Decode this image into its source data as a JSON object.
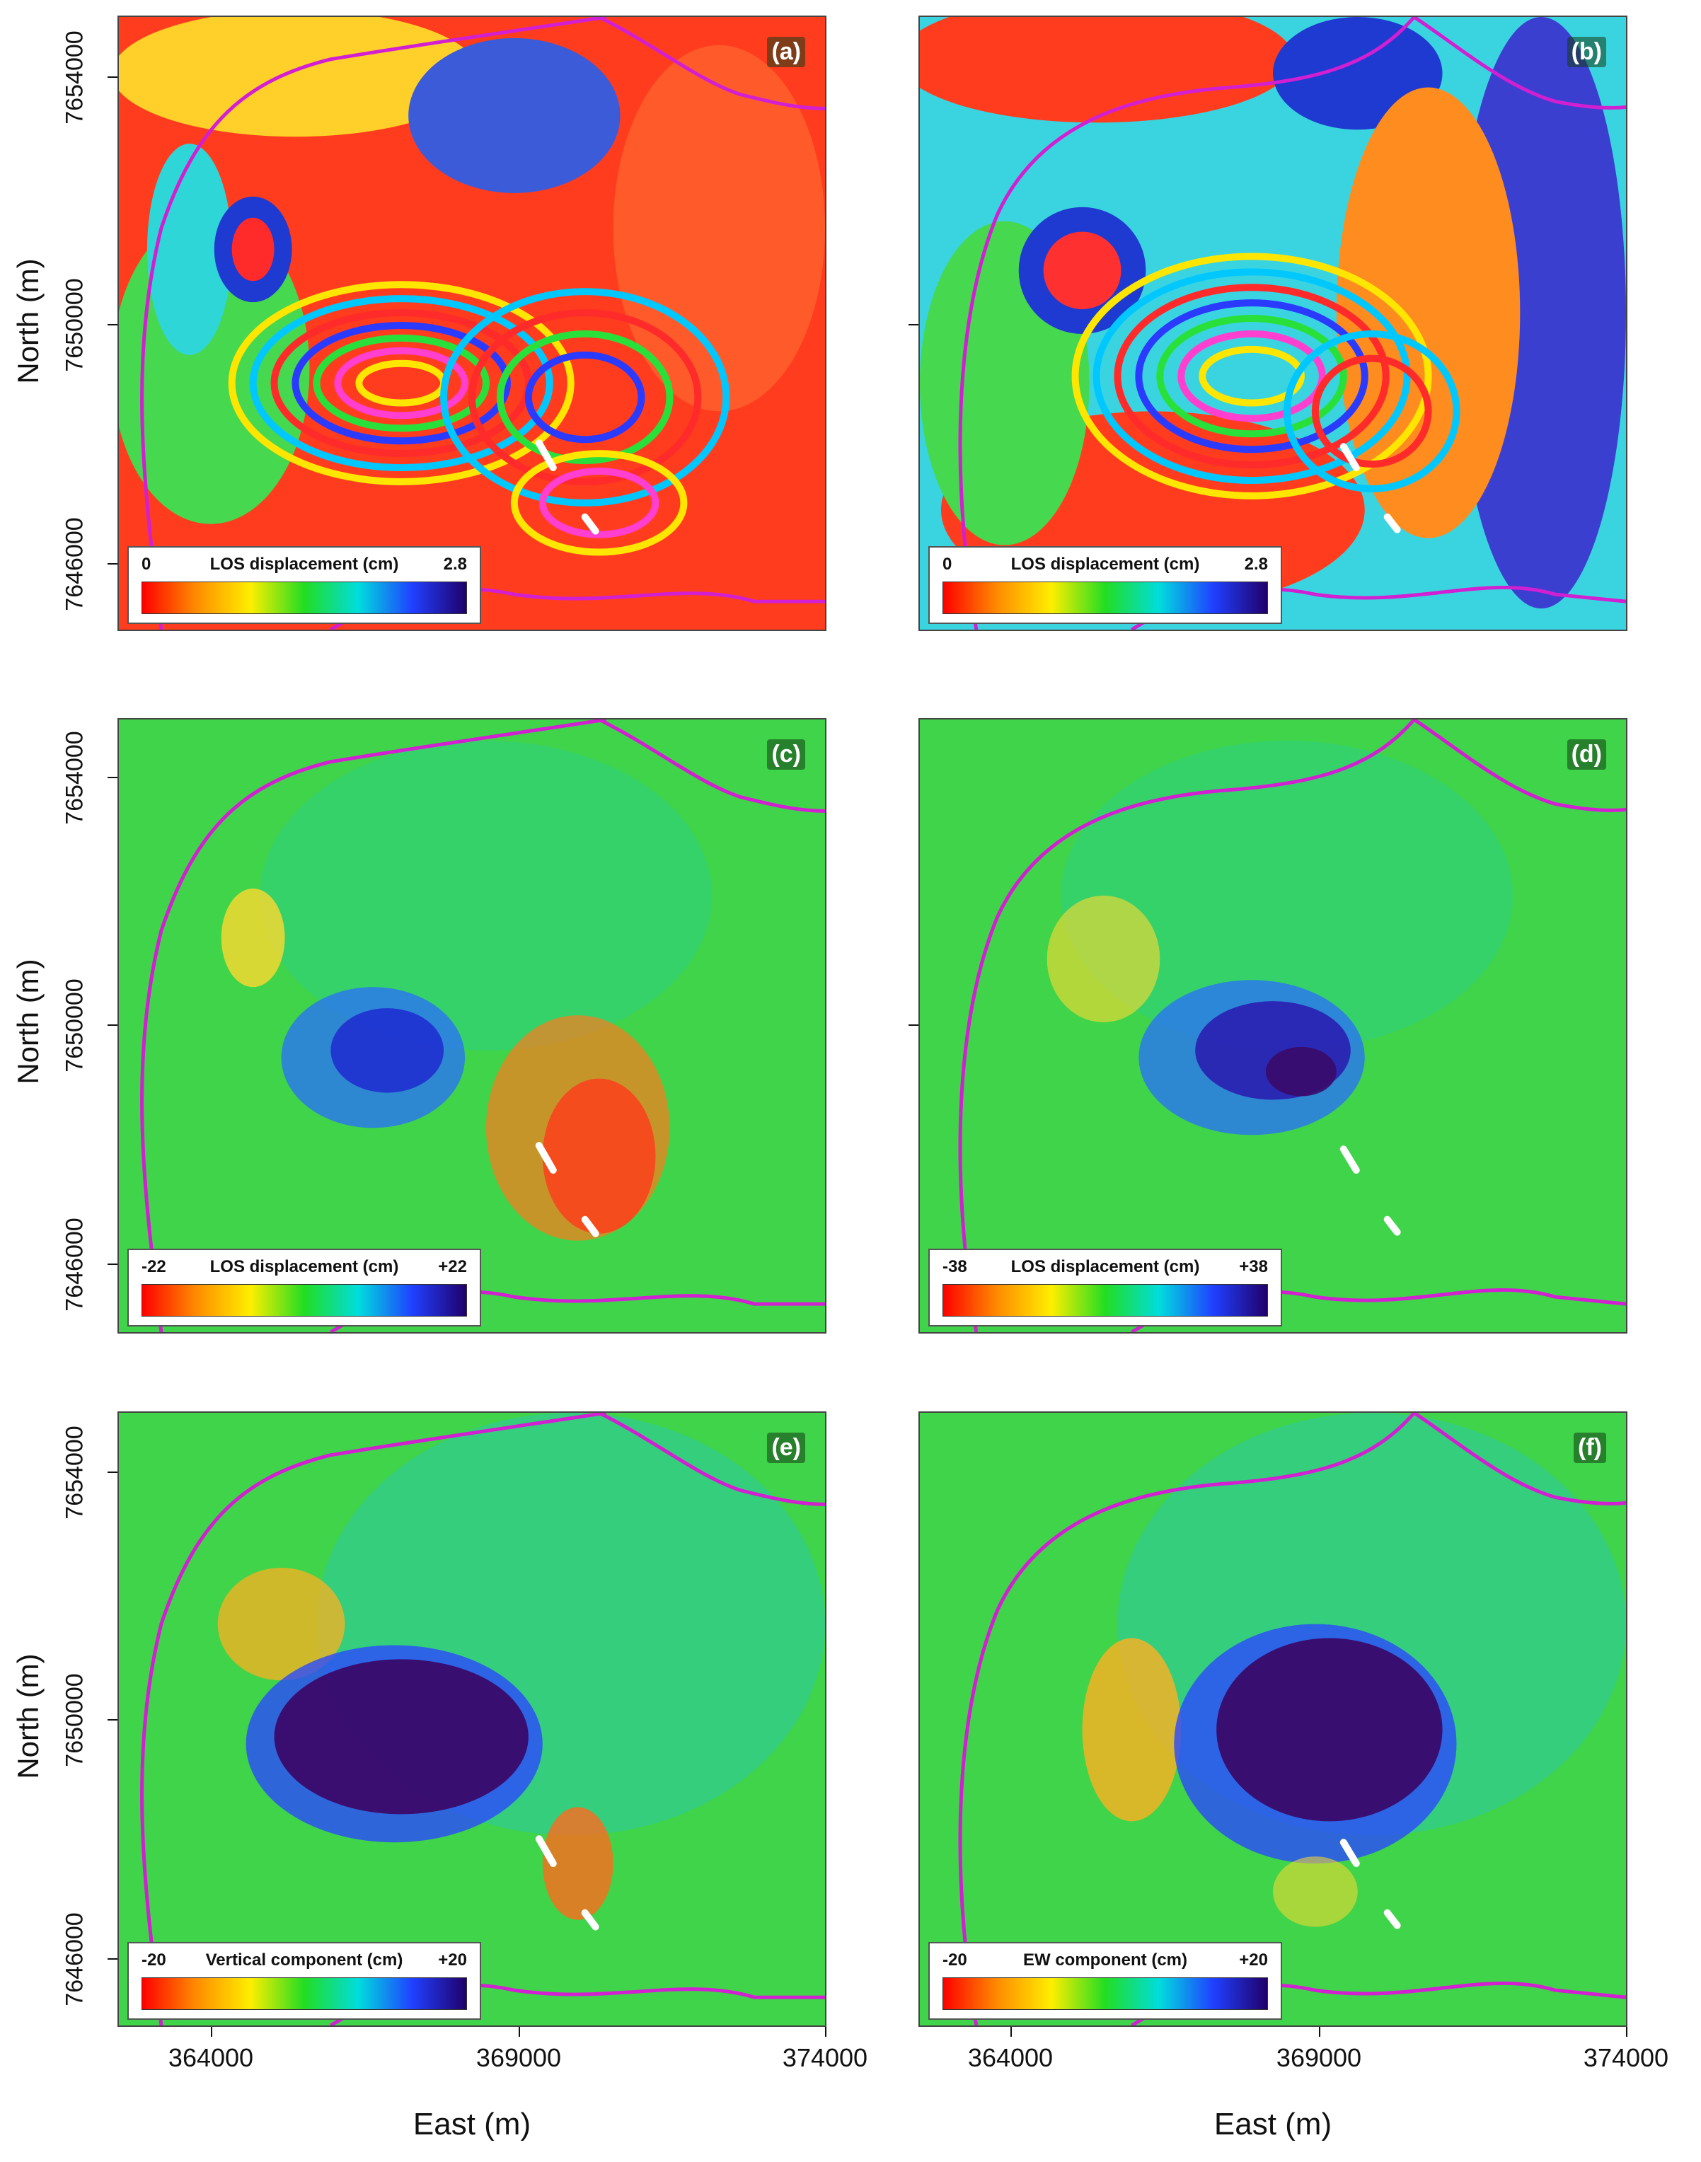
{
  "chart_data": [
    {
      "type": "heatmap",
      "panel": "(a)",
      "colorbar": {
        "title": "LOS displacement (cm)",
        "min": "0",
        "max": "2.8"
      },
      "xlabel": "",
      "ylabel": "North (m)"
    },
    {
      "type": "heatmap",
      "panel": "(b)",
      "colorbar": {
        "title": "LOS displacement (cm)",
        "min": "0",
        "max": "2.8"
      },
      "xlabel": "",
      "ylabel": ""
    },
    {
      "type": "heatmap",
      "panel": "(c)",
      "colorbar": {
        "title": "LOS displacement (cm)",
        "min": "-22",
        "max": "+22"
      },
      "xlabel": "",
      "ylabel": "North (m)"
    },
    {
      "type": "heatmap",
      "panel": "(d)",
      "colorbar": {
        "title": "LOS displacement (cm)",
        "min": "-38",
        "max": "+38"
      },
      "xlabel": "",
      "ylabel": ""
    },
    {
      "type": "heatmap",
      "panel": "(e)",
      "colorbar": {
        "title": "Vertical component (cm)",
        "min": "-20",
        "max": "+20"
      },
      "xlabel": "East (m)",
      "ylabel": "North (m)"
    },
    {
      "type": "heatmap",
      "panel": "(f)",
      "colorbar": {
        "title": "EW component (cm)",
        "min": "-20",
        "max": "+20"
      },
      "xlabel": "East (m)",
      "ylabel": ""
    }
  ],
  "axes": {
    "y_ticks": [
      "7654000",
      "7650000",
      "7646000"
    ],
    "x_ticks": [
      "364000",
      "369000",
      "374000"
    ],
    "ylabel": "North (m)",
    "xlabel": "East (m)"
  },
  "colors": {
    "caldera_rim": "#d21fd2",
    "background_green": "#3fd449",
    "fissure": "#ffffff"
  }
}
